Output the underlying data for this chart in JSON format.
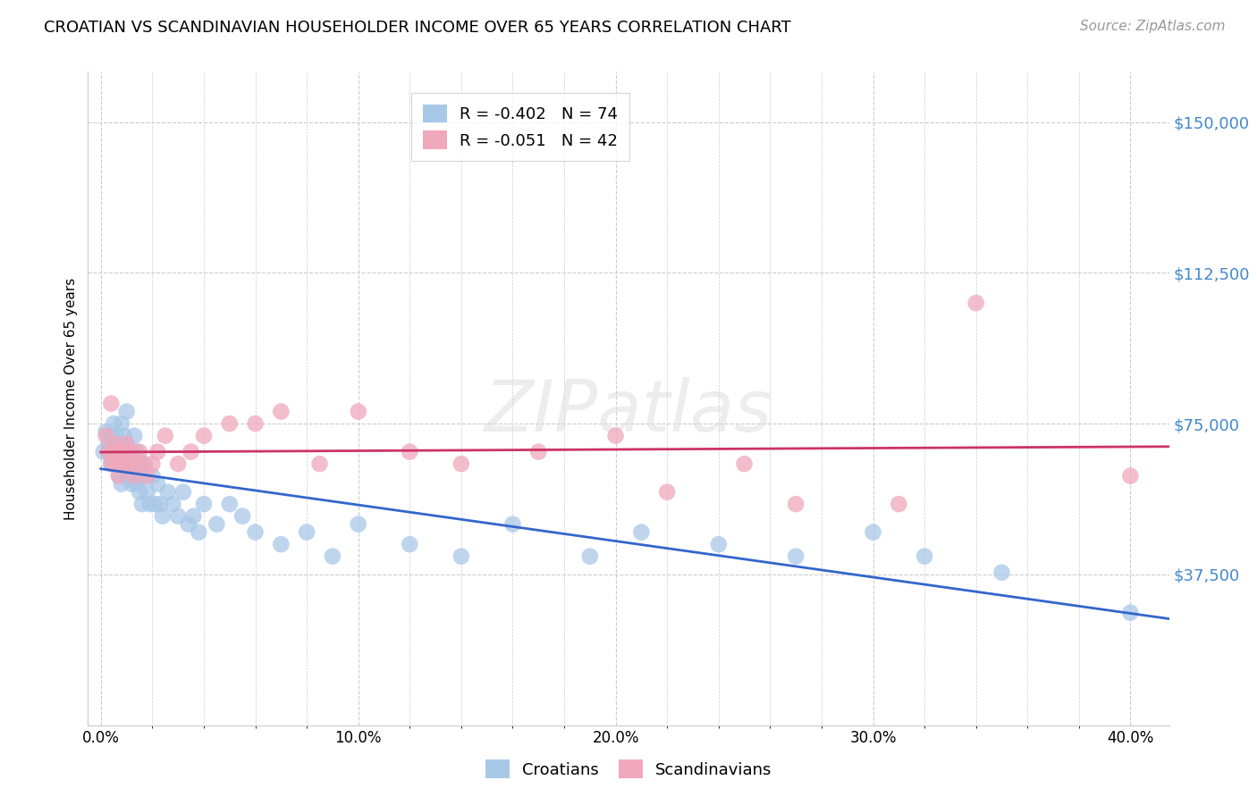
{
  "title": "CROATIAN VS SCANDINAVIAN HOUSEHOLDER INCOME OVER 65 YEARS CORRELATION CHART",
  "source": "Source: ZipAtlas.com",
  "ylabel": "Householder Income Over 65 years",
  "xlabel_ticks": [
    "0.0%",
    "",
    "",
    "",
    "",
    "10.0%",
    "",
    "",
    "",
    "",
    "20.0%",
    "",
    "",
    "",
    "",
    "30.0%",
    "",
    "",
    "",
    "",
    "40.0%"
  ],
  "xlabel_vals": [
    0.0,
    0.02,
    0.04,
    0.06,
    0.08,
    0.1,
    0.12,
    0.14,
    0.16,
    0.18,
    0.2,
    0.22,
    0.24,
    0.26,
    0.28,
    0.3,
    0.32,
    0.34,
    0.36,
    0.38,
    0.4
  ],
  "xlabel_show_ticks": [
    0.0,
    0.1,
    0.2,
    0.3,
    0.4
  ],
  "xlabel_show_labels": [
    "0.0%",
    "10.0%",
    "20.0%",
    "30.0%",
    "40.0%"
  ],
  "ylim": [
    0,
    162500
  ],
  "xlim": [
    -0.005,
    0.415
  ],
  "yticks": [
    0,
    37500,
    75000,
    112500,
    150000
  ],
  "ytick_labels": [
    "",
    "$37,500",
    "$75,000",
    "$112,500",
    "$150,000"
  ],
  "legend_entries": [
    {
      "label": "R = -0.402   N = 74",
      "color": "#a8c8e8"
    },
    {
      "label": "R = -0.051   N = 42",
      "color": "#f0a8bc"
    }
  ],
  "croatians_color": "#a8c8e8",
  "scandinavians_color": "#f0a8bc",
  "trend_croatians_color": "#3366cc",
  "trend_scandinavians_color": "#cc3366",
  "background_color": "#ffffff",
  "grid_color": "#cccccc",
  "watermark": "ZIPatlas",
  "title_fontsize": 13,
  "source_fontsize": 11,
  "croatians_x": [
    0.001,
    0.002,
    0.003,
    0.003,
    0.004,
    0.004,
    0.005,
    0.005,
    0.005,
    0.006,
    0.006,
    0.006,
    0.007,
    0.007,
    0.007,
    0.007,
    0.008,
    0.008,
    0.008,
    0.008,
    0.009,
    0.009,
    0.009,
    0.01,
    0.01,
    0.01,
    0.011,
    0.011,
    0.012,
    0.012,
    0.012,
    0.013,
    0.013,
    0.014,
    0.014,
    0.015,
    0.015,
    0.016,
    0.016,
    0.017,
    0.018,
    0.019,
    0.02,
    0.021,
    0.022,
    0.023,
    0.024,
    0.026,
    0.028,
    0.03,
    0.032,
    0.034,
    0.036,
    0.038,
    0.04,
    0.045,
    0.05,
    0.055,
    0.06,
    0.07,
    0.08,
    0.09,
    0.1,
    0.12,
    0.14,
    0.16,
    0.19,
    0.21,
    0.24,
    0.27,
    0.3,
    0.32,
    0.35,
    0.4
  ],
  "croatians_y": [
    68000,
    73000,
    70000,
    68000,
    72000,
    65000,
    75000,
    68000,
    65000,
    72000,
    68000,
    65000,
    70000,
    65000,
    62000,
    68000,
    75000,
    68000,
    65000,
    60000,
    72000,
    65000,
    68000,
    78000,
    65000,
    70000,
    68000,
    62000,
    65000,
    60000,
    68000,
    72000,
    65000,
    68000,
    60000,
    65000,
    58000,
    62000,
    55000,
    65000,
    58000,
    55000,
    62000,
    55000,
    60000,
    55000,
    52000,
    58000,
    55000,
    52000,
    58000,
    50000,
    52000,
    48000,
    55000,
    50000,
    55000,
    52000,
    48000,
    45000,
    48000,
    42000,
    50000,
    45000,
    42000,
    50000,
    42000,
    48000,
    45000,
    42000,
    48000,
    42000,
    38000,
    28000
  ],
  "scandinavians_x": [
    0.002,
    0.003,
    0.004,
    0.004,
    0.005,
    0.006,
    0.006,
    0.007,
    0.007,
    0.008,
    0.008,
    0.009,
    0.01,
    0.01,
    0.011,
    0.012,
    0.013,
    0.014,
    0.015,
    0.016,
    0.018,
    0.02,
    0.022,
    0.025,
    0.03,
    0.035,
    0.04,
    0.05,
    0.06,
    0.07,
    0.085,
    0.1,
    0.12,
    0.14,
    0.17,
    0.2,
    0.22,
    0.25,
    0.27,
    0.31,
    0.34,
    0.4
  ],
  "scandinavians_y": [
    72000,
    68000,
    65000,
    80000,
    68000,
    65000,
    70000,
    62000,
    68000,
    65000,
    68000,
    65000,
    68000,
    70000,
    65000,
    68000,
    62000,
    65000,
    68000,
    65000,
    62000,
    65000,
    68000,
    72000,
    65000,
    68000,
    72000,
    75000,
    75000,
    78000,
    65000,
    78000,
    68000,
    65000,
    68000,
    72000,
    58000,
    65000,
    55000,
    55000,
    105000,
    62000
  ]
}
